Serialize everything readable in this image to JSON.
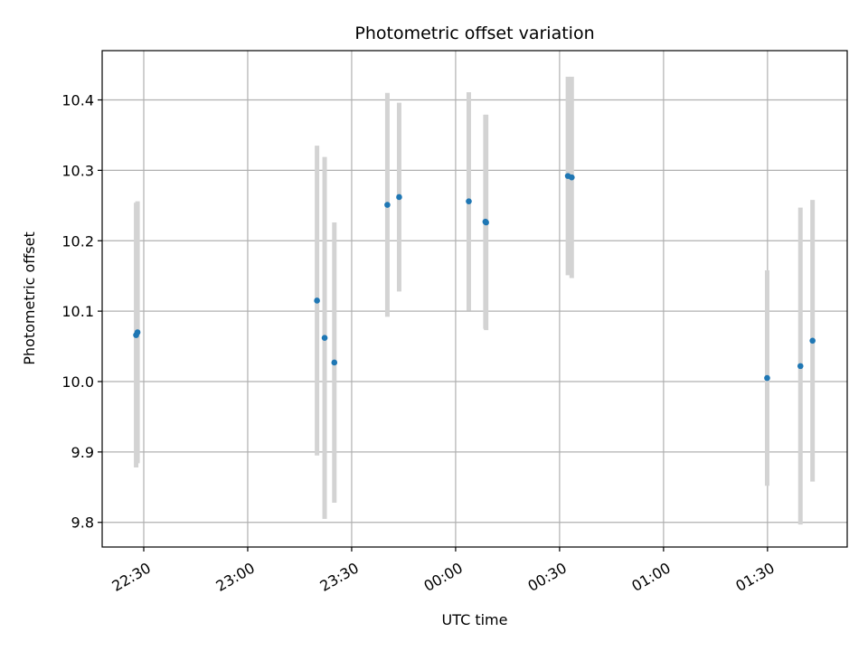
{
  "chart_data": {
    "type": "scatter",
    "title": "Photometric offset variation",
    "xlabel": "UTC time",
    "ylabel": "Photometric offset",
    "x_tick_labels": [
      "22:30",
      "23:00",
      "23:30",
      "00:00",
      "00:30",
      "01:00",
      "01:30"
    ],
    "x_ticks_minutes": [
      0,
      30,
      60,
      90,
      120,
      150,
      180
    ],
    "y_ticks": [
      9.8,
      9.9,
      10.0,
      10.1,
      10.2,
      10.3,
      10.4
    ],
    "y_tick_labels": [
      "9.8",
      "9.9",
      "10.0",
      "10.1",
      "10.2",
      "10.3",
      "10.4"
    ],
    "xlim_minutes": [
      -12,
      203
    ],
    "ylim": [
      9.765,
      10.47
    ],
    "grid": true,
    "marker_color": "#1f77b4",
    "errorbar_color": "#d3d3d3",
    "series": [
      {
        "points": [
          {
            "t": -2.2,
            "y": 10.066,
            "err": 0.188
          },
          {
            "t": -1.8,
            "y": 10.07,
            "err": 0.186
          },
          {
            "t": 50.0,
            "y": 10.115,
            "err": 0.22
          },
          {
            "t": 52.2,
            "y": 10.062,
            "err": 0.257
          },
          {
            "t": 55.0,
            "y": 10.027,
            "err": 0.199
          },
          {
            "t": 70.3,
            "y": 10.251,
            "err": 0.159
          },
          {
            "t": 73.7,
            "y": 10.262,
            "err": 0.134
          },
          {
            "t": 93.8,
            "y": 10.256,
            "err": 0.155
          },
          {
            "t": 98.8,
            "y": 10.226,
            "err": 0.153
          },
          {
            "t": 98.6,
            "y": 10.227,
            "err": 0.152
          },
          {
            "t": 122.4,
            "y": 10.292,
            "err": 0.141
          },
          {
            "t": 123.5,
            "y": 10.29,
            "err": 0.143
          },
          {
            "t": 179.9,
            "y": 10.005,
            "err": 0.153
          },
          {
            "t": 189.5,
            "y": 10.022,
            "err": 0.225
          },
          {
            "t": 193.0,
            "y": 10.058,
            "err": 0.2
          }
        ]
      }
    ]
  }
}
